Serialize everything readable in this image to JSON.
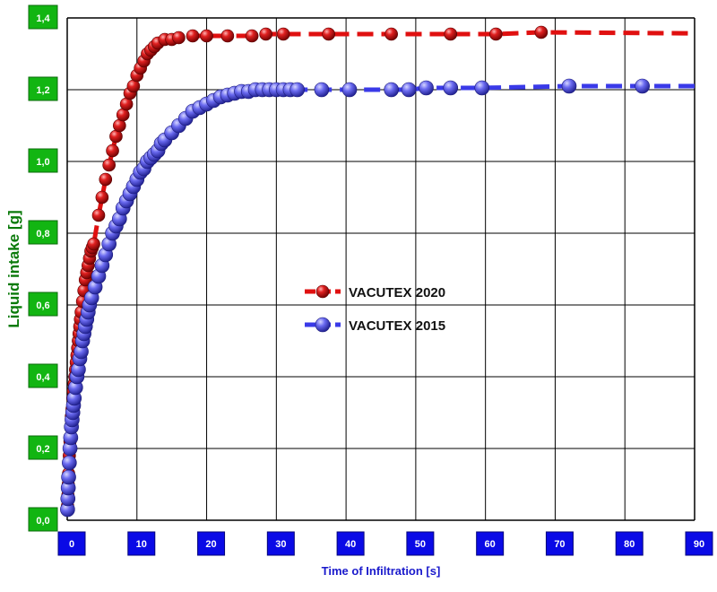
{
  "chart_data": {
    "type": "line",
    "title": "",
    "xlabel": "Time of Infiltration [s]",
    "ylabel": "Liquid intake [g]",
    "xlim": [
      0,
      90
    ],
    "ylim": [
      0,
      1.4
    ],
    "xticks": [
      "0",
      "10",
      "20",
      "30",
      "40",
      "50",
      "60",
      "70",
      "80",
      "90"
    ],
    "yticks": [
      "0,0",
      "0,2",
      "0,4",
      "0,6",
      "0,8",
      "1,0",
      "1,2",
      "1,4"
    ],
    "grid": true,
    "legend_position": "center",
    "series": [
      {
        "name": "VACUTEX 2020",
        "color": "#e01010",
        "line_style": "dashed",
        "marker": "sphere",
        "x": [
          0.05,
          0.1,
          0.15,
          0.2,
          0.3,
          0.4,
          0.5,
          0.6,
          0.7,
          0.8,
          0.9,
          1.0,
          1.1,
          1.2,
          1.3,
          1.4,
          1.5,
          1.6,
          1.7,
          1.8,
          1.9,
          2.0,
          2.2,
          2.4,
          2.6,
          2.8,
          3.0,
          3.2,
          3.4,
          3.6,
          3.8,
          4.5,
          5.0,
          5.5,
          6.0,
          6.5,
          7.0,
          7.5,
          8.0,
          8.5,
          9.0,
          9.5,
          10.0,
          10.5,
          11.0,
          11.5,
          12.0,
          12.5,
          13.0,
          14.0,
          15.0,
          16.0,
          18.0,
          20.0,
          23.0,
          26.5,
          28.5,
          31.0,
          37.5,
          46.5,
          55.0,
          61.5,
          68.0
        ],
        "y": [
          0.04,
          0.07,
          0.1,
          0.13,
          0.18,
          0.22,
          0.26,
          0.29,
          0.31,
          0.34,
          0.36,
          0.38,
          0.4,
          0.42,
          0.44,
          0.46,
          0.48,
          0.5,
          0.52,
          0.54,
          0.56,
          0.58,
          0.61,
          0.64,
          0.67,
          0.69,
          0.71,
          0.73,
          0.75,
          0.76,
          0.77,
          0.85,
          0.9,
          0.95,
          0.99,
          1.03,
          1.07,
          1.1,
          1.13,
          1.16,
          1.19,
          1.21,
          1.24,
          1.26,
          1.28,
          1.3,
          1.31,
          1.32,
          1.33,
          1.34,
          1.34,
          1.345,
          1.35,
          1.35,
          1.35,
          1.35,
          1.355,
          1.355,
          1.355,
          1.355,
          1.355,
          1.355,
          1.36
        ],
        "line_extends_to": [
          90,
          1.357
        ]
      },
      {
        "name": "VACUTEX 2015",
        "color": "#3a3ae8",
        "line_style": "dashed",
        "marker": "sphere",
        "x": [
          0.05,
          0.1,
          0.15,
          0.2,
          0.3,
          0.4,
          0.5,
          0.6,
          0.7,
          0.8,
          0.9,
          1.0,
          1.2,
          1.4,
          1.6,
          1.8,
          2.0,
          2.2,
          2.4,
          2.6,
          2.8,
          3.0,
          3.2,
          3.5,
          4.0,
          4.5,
          5.0,
          5.5,
          6.0,
          6.5,
          7.0,
          7.5,
          8.0,
          8.5,
          9.0,
          9.5,
          10.0,
          10.5,
          11.0,
          11.5,
          12.0,
          12.5,
          13.0,
          13.5,
          14.0,
          15.0,
          16.0,
          17.0,
          18.0,
          19.0,
          20.0,
          21.0,
          22.0,
          23.0,
          24.0,
          25.0,
          26.0,
          27.0,
          28.0,
          29.0,
          30.0,
          31.0,
          32.0,
          33.0,
          36.5,
          40.5,
          46.5,
          49.0,
          51.5,
          55.0,
          59.5,
          72.0,
          82.5
        ],
        "y": [
          0.03,
          0.06,
          0.09,
          0.12,
          0.16,
          0.2,
          0.23,
          0.26,
          0.28,
          0.3,
          0.32,
          0.34,
          0.37,
          0.4,
          0.42,
          0.45,
          0.47,
          0.5,
          0.52,
          0.54,
          0.56,
          0.58,
          0.6,
          0.62,
          0.65,
          0.68,
          0.71,
          0.74,
          0.77,
          0.8,
          0.82,
          0.84,
          0.87,
          0.89,
          0.91,
          0.93,
          0.95,
          0.97,
          0.98,
          1.0,
          1.01,
          1.02,
          1.03,
          1.05,
          1.06,
          1.08,
          1.1,
          1.12,
          1.14,
          1.15,
          1.16,
          1.17,
          1.18,
          1.185,
          1.19,
          1.195,
          1.195,
          1.2,
          1.2,
          1.2,
          1.2,
          1.2,
          1.2,
          1.2,
          1.2,
          1.2,
          1.2,
          1.2,
          1.205,
          1.205,
          1.205,
          1.21,
          1.21
        ],
        "line_extends_to": [
          90,
          1.21
        ]
      }
    ]
  }
}
